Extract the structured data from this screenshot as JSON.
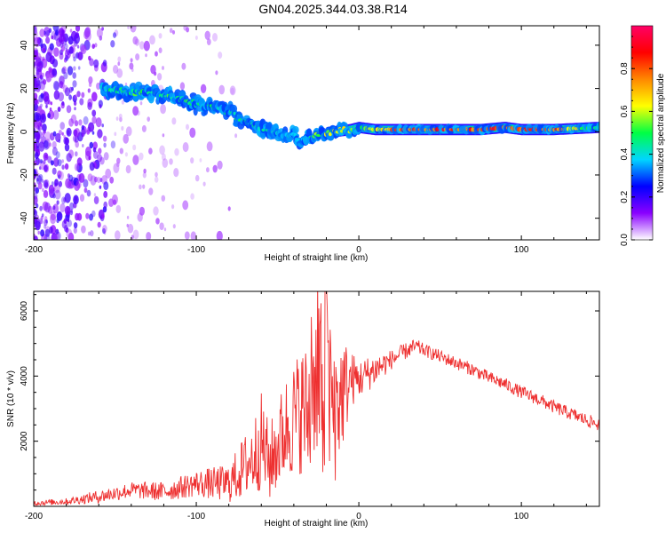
{
  "figure": {
    "title": "GN04.2025.344.03.38.R14"
  },
  "chart_data": [
    {
      "type": "heatmap",
      "title": "GN04.2025.344.03.38.R14",
      "xlabel": "Height of straight line (km)",
      "ylabel": "Frequency (Hz)",
      "xlim": [
        -200,
        148
      ],
      "ylim": [
        -50,
        49
      ],
      "xticks": [
        -200,
        -100,
        0,
        100
      ],
      "yticks": [
        -40,
        -20,
        0,
        20,
        40
      ],
      "colorbar": {
        "label": "Normalized spectral amplitude",
        "range": [
          0,
          1
        ],
        "ticks": [
          "0.0",
          "0.2",
          "0.4",
          "0.6",
          "0.8"
        ],
        "colors": [
          "#ffffff",
          "#8a00ff",
          "#0000ff",
          "#00d5ff",
          "#00ff44",
          "#ffff00",
          "#ff8800",
          "#ff0000",
          "#ff0066"
        ]
      },
      "ridge": {
        "x": [
          -155,
          -140,
          -125,
          -110,
          -95,
          -80,
          -65,
          -50,
          -40,
          -35,
          -25,
          -15,
          -5,
          0,
          10,
          25,
          50,
          75,
          90,
          100,
          120,
          148
        ],
        "y": [
          20,
          18,
          18,
          15,
          12,
          9,
          3,
          0,
          -2,
          -4,
          -1,
          0,
          1,
          2,
          1,
          1,
          1,
          1,
          2,
          1,
          1,
          2
        ],
        "amplitude": [
          0.45,
          0.5,
          0.5,
          0.5,
          0.45,
          0.45,
          0.45,
          0.4,
          0.4,
          0.35,
          0.55,
          0.6,
          0.6,
          0.55,
          0.65,
          0.8,
          0.85,
          0.8,
          0.88,
          0.85,
          0.82,
          0.4
        ]
      }
    },
    {
      "type": "line",
      "xlabel": "Height of straight line (km)",
      "ylabel": "SNR (10 * v/v)",
      "xlim": [
        -200,
        148
      ],
      "ylim": [
        0,
        6600
      ],
      "xticks": [
        -200,
        -100,
        0,
        100
      ],
      "yticks": [
        2000,
        4000,
        6000
      ],
      "color": "#ee3030",
      "series": [
        {
          "x": [
            -200,
            -180,
            -160,
            -140,
            -120,
            -100,
            -80,
            -65,
            -60,
            -55,
            -45,
            -40,
            -35,
            -30,
            -25,
            -20,
            -15,
            -10,
            -5,
            0,
            10,
            20,
            30,
            35,
            40,
            50,
            60,
            70,
            80,
            90,
            100,
            110,
            120,
            130,
            140,
            148
          ],
          "y": [
            100,
            150,
            300,
            500,
            450,
            700,
            700,
            1500,
            2000,
            1300,
            2400,
            2700,
            3000,
            2800,
            3600,
            3300,
            3000,
            3500,
            3900,
            3900,
            4200,
            4500,
            4800,
            4900,
            4800,
            4600,
            4400,
            4200,
            3950,
            3750,
            3500,
            3300,
            3050,
            2850,
            2650,
            2500
          ],
          "spread": [
            80,
            100,
            200,
            250,
            300,
            400,
            600,
            1200,
            1500,
            1200,
            1600,
            1800,
            2000,
            2200,
            2800,
            3000,
            2400,
            1800,
            900,
            600,
            500,
            300,
            250,
            250,
            200,
            200,
            200,
            200,
            200,
            200,
            200,
            200,
            200,
            200,
            200,
            200
          ]
        }
      ]
    }
  ]
}
